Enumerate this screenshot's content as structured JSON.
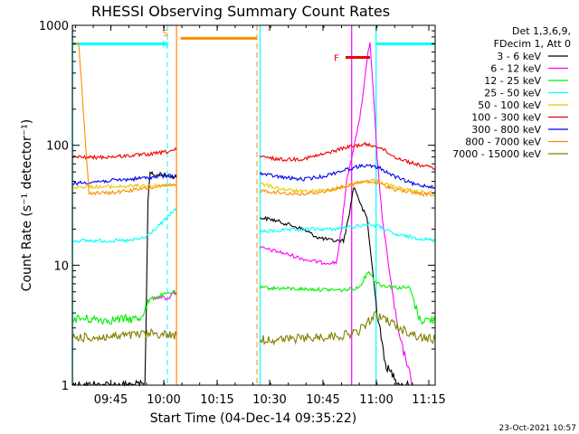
{
  "chart_data": {
    "type": "line",
    "title": "RHESSI Observing Summary Count Rates",
    "xlabel": "Start Time (04-Dec-14 09:35:22)",
    "ylabel": "Count Rate (s⁻¹ detector⁻¹)",
    "yscale": "log",
    "ylim": [
      1,
      1000
    ],
    "xlim_minutes": [
      39.37,
      75.0
    ],
    "x_tick_labels": [
      "09:45",
      "10:00",
      "10:15",
      "10:30",
      "10:45",
      "11:00",
      "11:15"
    ],
    "y_tick_labels": [
      "1",
      "10",
      "100",
      "1000"
    ],
    "legend_title": [
      "Det 1,3,6,9,",
      "FDecim 1, Att 0"
    ],
    "legend_position": "right",
    "footer": "23-Oct-2021 10:57",
    "colors": {
      "3 - 6 keV": "#000000",
      "6 - 12 keV": "#ff00ff",
      "12 - 25 keV": "#00ee00",
      "25 - 50 keV": "#00ffff",
      "50 - 100 keV": "#e6c800",
      "100 - 300 keV": "#ee0000",
      "300 - 800 keV": "#0000ee",
      "800 - 7000 keV": "#ff8c00",
      "7000 - 15000 keV": "#808000"
    },
    "series": [
      {
        "name": "3 - 6 keV",
        "segments": [
          [
            [
              39.4,
              1.0
            ],
            [
              41.5,
              1.0
            ],
            [
              43.0,
              1.0
            ],
            [
              45.0,
              1.0
            ],
            [
              46.5,
              1.0
            ],
            [
              46.8,
              35
            ],
            [
              47.0,
              60
            ],
            [
              47.5,
              55
            ],
            [
              48.0,
              58
            ],
            [
              49.0,
              55
            ],
            [
              49.6,
              54
            ]
          ],
          [
            [
              57.8,
              25
            ],
            [
              59.0,
              24
            ],
            [
              60.5,
              22
            ],
            [
              62.0,
              20
            ],
            [
              63.5,
              17
            ],
            [
              65.0,
              16
            ],
            [
              66.0,
              16
            ],
            [
              66.5,
              25
            ],
            [
              67.0,
              45
            ],
            [
              67.3,
              40
            ],
            [
              67.8,
              30
            ],
            [
              68.3,
              25
            ],
            [
              68.8,
              10
            ],
            [
              69.3,
              4
            ],
            [
              69.6,
              3
            ],
            [
              70.0,
              1.6
            ],
            [
              70.5,
              1.3
            ],
            [
              71.0,
              1.2
            ],
            [
              71.5,
              1.0
            ],
            [
              72.5,
              1.0
            ]
          ]
        ]
      },
      {
        "name": "6 - 12 keV",
        "segments": [
          [
            [
              47.3,
              5.2
            ],
            [
              48.0,
              5.5
            ],
            [
              48.8,
              5.2
            ],
            [
              49.2,
              6.0
            ],
            [
              49.6,
              5.8
            ]
          ],
          [
            [
              57.8,
              14
            ],
            [
              59.5,
              13
            ],
            [
              61.0,
              12
            ],
            [
              62.5,
              11
            ],
            [
              64.0,
              10.5
            ],
            [
              65.3,
              10.5
            ],
            [
              65.8,
              20
            ],
            [
              66.3,
              50
            ],
            [
              66.8,
              80
            ],
            [
              67.5,
              150
            ],
            [
              68.0,
              300
            ],
            [
              68.4,
              600
            ],
            [
              68.6,
              700
            ],
            [
              68.9,
              300
            ],
            [
              69.3,
              80
            ],
            [
              69.8,
              25
            ],
            [
              70.3,
              12
            ],
            [
              70.8,
              6
            ],
            [
              71.3,
              3
            ],
            [
              71.8,
              2
            ],
            [
              72.3,
              1.5
            ],
            [
              72.7,
              1.0
            ]
          ]
        ]
      },
      {
        "name": "12 - 25 keV",
        "segments": [
          [
            [
              39.4,
              3.6
            ],
            [
              43.0,
              3.5
            ],
            [
              46.0,
              3.6
            ],
            [
              47.0,
              5.2
            ],
            [
              48.0,
              5.6
            ],
            [
              49.6,
              6.0
            ]
          ],
          [
            [
              57.8,
              6.5
            ],
            [
              60.0,
              6.4
            ],
            [
              63.0,
              6.3
            ],
            [
              66.0,
              6.2
            ],
            [
              67.5,
              6.5
            ],
            [
              68.5,
              9.0
            ],
            [
              69.0,
              7.5
            ],
            [
              69.7,
              6.8
            ],
            [
              71.5,
              6.5
            ],
            [
              72.5,
              6.5
            ],
            [
              73.5,
              3.5
            ],
            [
              75.0,
              3.5
            ]
          ]
        ]
      },
      {
        "name": "25 - 50 keV",
        "segments": [
          [
            [
              39.4,
              16
            ],
            [
              42.0,
              16
            ],
            [
              45.0,
              16
            ],
            [
              46.5,
              17
            ],
            [
              47.5,
              20
            ],
            [
              48.5,
              24
            ],
            [
              49.6,
              30
            ]
          ],
          [
            [
              57.8,
              19
            ],
            [
              60.0,
              19.5
            ],
            [
              63.0,
              20
            ],
            [
              65.0,
              20
            ],
            [
              67.0,
              21
            ],
            [
              68.5,
              22
            ],
            [
              69.5,
              21
            ],
            [
              71.0,
              18
            ],
            [
              73.0,
              17
            ],
            [
              75.0,
              16
            ]
          ]
        ]
      },
      {
        "name": "50 - 100 keV",
        "segments": [
          [
            [
              39.4,
              45
            ],
            [
              43.0,
              45
            ],
            [
              46.0,
              46
            ],
            [
              48.0,
              46
            ],
            [
              49.6,
              47
            ]
          ],
          [
            [
              57.8,
              48
            ],
            [
              60.0,
              43
            ],
            [
              62.0,
              41
            ],
            [
              64.0,
              42
            ],
            [
              66.0,
              45
            ],
            [
              67.5,
              49
            ],
            [
              69.0,
              51
            ],
            [
              71.0,
              45
            ],
            [
              73.0,
              41
            ],
            [
              75.0,
              40
            ]
          ]
        ]
      },
      {
        "name": "100 - 300 keV",
        "segments": [
          [
            [
              39.4,
              80
            ],
            [
              41.0,
              79
            ],
            [
              43.0,
              80
            ],
            [
              45.0,
              82
            ],
            [
              47.0,
              84
            ],
            [
              48.5,
              88
            ],
            [
              49.6,
              92
            ]
          ],
          [
            [
              57.8,
              80
            ],
            [
              60.0,
              76
            ],
            [
              62.0,
              77
            ],
            [
              64.0,
              84
            ],
            [
              66.0,
              95
            ],
            [
              68.0,
              102
            ],
            [
              69.5,
              97
            ],
            [
              71.0,
              80
            ],
            [
              73.0,
              70
            ],
            [
              75.0,
              64
            ]
          ]
        ]
      },
      {
        "name": "300 - 800 keV",
        "segments": [
          [
            [
              39.4,
              48
            ],
            [
              42.0,
              50
            ],
            [
              45.0,
              52
            ],
            [
              47.0,
              54
            ],
            [
              49.6,
              56
            ]
          ],
          [
            [
              57.8,
              58
            ],
            [
              60.0,
              54
            ],
            [
              62.0,
              52
            ],
            [
              64.0,
              55
            ],
            [
              66.0,
              62
            ],
            [
              68.0,
              68
            ],
            [
              69.5,
              65
            ],
            [
              71.0,
              55
            ],
            [
              73.0,
              47
            ],
            [
              75.0,
              45
            ]
          ]
        ]
      },
      {
        "name": "800 - 7000 keV",
        "segments": [
          [
            [
              39.4,
              700
            ],
            [
              40.0,
              700
            ],
            [
              41.0,
              40
            ],
            [
              43.0,
              40
            ],
            [
              45.0,
              42
            ],
            [
              47.0,
              44
            ],
            [
              49.6,
              47
            ]
          ],
          [
            [
              50.0,
              780
            ],
            [
              57.5,
              780
            ]
          ],
          [
            [
              57.8,
              42
            ],
            [
              60.0,
              40
            ],
            [
              62.0,
              39
            ],
            [
              64.0,
              41
            ],
            [
              66.0,
              45
            ],
            [
              68.0,
              50
            ],
            [
              69.5,
              48
            ],
            [
              71.0,
              43
            ],
            [
              73.0,
              40
            ],
            [
              75.0,
              38
            ]
          ]
        ]
      },
      {
        "name": "7000 - 15000 keV",
        "segments": [
          [
            [
              39.4,
              2.5
            ],
            [
              42.0,
              2.5
            ],
            [
              45.0,
              2.6
            ],
            [
              47.0,
              2.7
            ],
            [
              49.6,
              2.6
            ]
          ],
          [
            [
              57.8,
              2.4
            ],
            [
              60.0,
              2.4
            ],
            [
              63.0,
              2.5
            ],
            [
              66.0,
              2.6
            ],
            [
              67.5,
              2.8
            ],
            [
              69.0,
              3.8
            ],
            [
              70.0,
              3.6
            ],
            [
              71.5,
              3.0
            ],
            [
              73.5,
              2.5
            ],
            [
              75.0,
              2.4
            ]
          ]
        ]
      }
    ],
    "annotations": [
      {
        "label": "S",
        "color": "#ff8c00",
        "x": 48.5,
        "y": 870
      },
      {
        "label": "N",
        "color": "#00ffff",
        "x": 48.5,
        "y": 700
      },
      {
        "label": "F",
        "color": "#ee0000",
        "x": 65.3,
        "y": 540,
        "span": [
          66.2,
          68.6
        ]
      }
    ],
    "intervals": [
      {
        "type": "night",
        "color": "#00ffff",
        "segments": [
          [
            [
              39.4,
              700
            ],
            [
              48.7,
              700
            ]
          ],
          [
            [
              69.2,
              700
            ],
            [
              75.0,
              700
            ]
          ]
        ],
        "dashed_x": [
          48.7,
          75.0
        ]
      },
      {
        "type": "saa",
        "color": "#ff8c00",
        "solid_x": [
          49.6
        ],
        "dashed_x": [
          57.5
        ]
      },
      {
        "type": "data_gap",
        "color": "#00ffff",
        "solid_x": [
          39.4,
          57.8,
          69.2
        ]
      },
      {
        "type": "data_gap",
        "color": "#ff00ff",
        "solid_x": [
          66.8
        ]
      }
    ]
  }
}
